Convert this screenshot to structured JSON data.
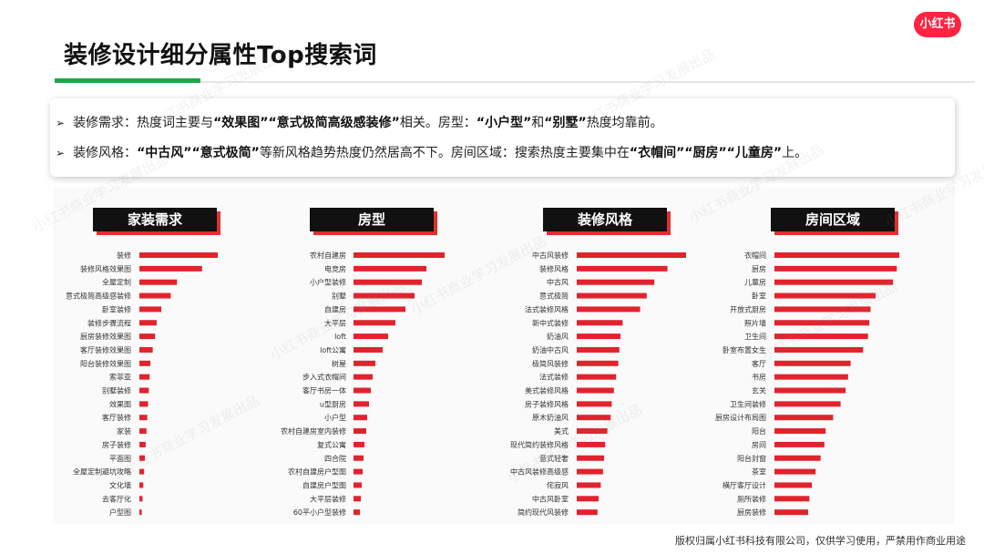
{
  "logo": "小红书",
  "title": "装修设计细分属性Top搜索词",
  "summary": [
    [
      {
        "t": "装修需求：热度词主要与",
        "b": false
      },
      {
        "t": "“效果图”“意式极简高级感装修”",
        "b": true
      },
      {
        "t": "相关。房型：",
        "b": false
      },
      {
        "t": "“小户型”",
        "b": true
      },
      {
        "t": "和",
        "b": false
      },
      {
        "t": "“别墅”",
        "b": true
      },
      {
        "t": "热度均靠前。",
        "b": false
      }
    ],
    [
      {
        "t": "装修风格：",
        "b": false
      },
      {
        "t": "“中古风”“意式极简”",
        "b": true
      },
      {
        "t": "等新风格趋势热度仍然居高不下。房间区域：搜索热度主要集中在",
        "b": false
      },
      {
        "t": "“衣帽间”“厨房”“儿童房”",
        "b": true
      },
      {
        "t": "上。",
        "b": false
      }
    ]
  ],
  "footer": "版权归属小红书科技有限公司，仅供学习使用，严禁用作商业用途",
  "watermark": "小红书商业学习发展出品",
  "colors": {
    "bar": "#e1232e",
    "header_bg": "#111111",
    "header_shadow": "#e03030",
    "accent_green": "#1fa64a"
  },
  "chart_data": [
    {
      "type": "bar",
      "orientation": "horizontal",
      "title": "家装需求",
      "categories": [
        "装修",
        "装修风格效果图",
        "全屋定制",
        "意式极简高级感装修",
        "卧室装修",
        "装修步骤流程",
        "厨房装修效果图",
        "客厅装修效果图",
        "阳台装修效果图",
        "索菲亚",
        "别墅装修",
        "效果图",
        "客厅装修",
        "家装",
        "房子装修",
        "平面图",
        "全屋定制避坑攻略",
        "文化墙",
        "去客厅化",
        "户型图"
      ],
      "values": [
        100,
        80,
        48,
        40,
        28,
        22,
        20,
        17,
        14,
        13,
        12,
        11,
        10,
        9,
        8,
        7,
        6,
        5,
        4,
        3
      ]
    },
    {
      "type": "bar",
      "orientation": "horizontal",
      "title": "房型",
      "categories": [
        "农村自建房",
        "电竞房",
        "小户型装修",
        "别墅",
        "自建房",
        "大平层",
        "loft",
        "loft公寓",
        "树屋",
        "步入式衣帽间",
        "客厅书房一体",
        "u型厨房",
        "小户型",
        "农村自建房室内装修",
        "复式公寓",
        "四合院",
        "农村自建房户型图",
        "自建房户型图",
        "大平层装修",
        "60平小户型装修"
      ],
      "values": [
        100,
        80,
        75,
        67,
        57,
        46,
        38,
        32,
        24,
        21,
        19,
        17,
        15,
        14,
        12,
        11,
        10,
        9,
        8,
        7
      ]
    },
    {
      "type": "bar",
      "orientation": "horizontal",
      "title": "装修风格",
      "categories": [
        "中古风装修",
        "装修风格",
        "中古风",
        "意式极简",
        "法式装修风格",
        "新中式装修",
        "奶油风",
        "奶油中古风",
        "极简风装修",
        "法式装修",
        "美式装修风格",
        "房子装修风格",
        "原木奶油风",
        "美式",
        "现代简约装修风格",
        "意式轻奢",
        "中古风装修高级感",
        "侘寂风",
        "中古风卧室",
        "简约现代风装修"
      ],
      "values": [
        100,
        83,
        71,
        64,
        58,
        42,
        40,
        39,
        38,
        36,
        34,
        32,
        31,
        28,
        26,
        25,
        24,
        22,
        20,
        19
      ]
    },
    {
      "type": "bar",
      "orientation": "horizontal",
      "title": "房间区域",
      "categories": [
        "衣帽间",
        "厨房",
        "儿童房",
        "卧室",
        "开放式厨房",
        "照片墙",
        "卫生间",
        "卧室布置女生",
        "客厅",
        "书房",
        "玄关",
        "卫生间装修",
        "厨房设计布局图",
        "阳台",
        "房间",
        "阳台封窗",
        "茶室",
        "横厅客厅设计",
        "厕所装修",
        "厨房装修"
      ],
      "values": [
        100,
        98,
        95,
        81,
        77,
        76,
        75,
        71,
        61,
        59,
        57,
        53,
        47,
        41,
        40,
        37,
        33,
        30,
        28,
        27
      ]
    }
  ]
}
